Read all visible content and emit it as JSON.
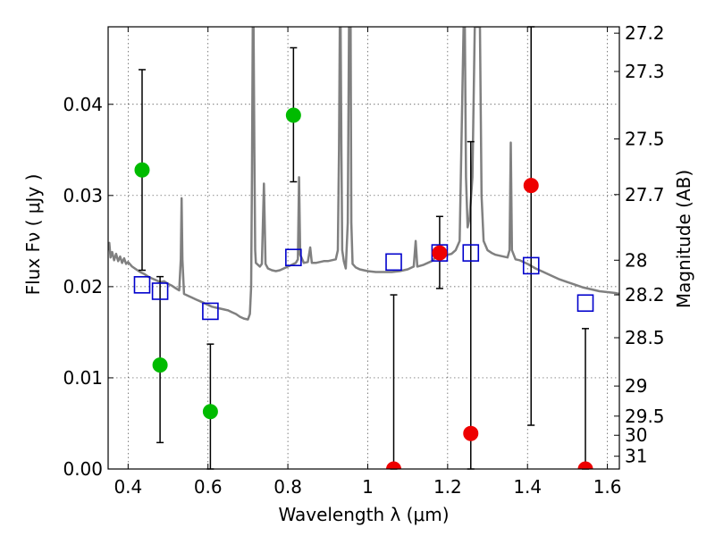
{
  "chart_data": {
    "type": "scatter",
    "xlabel": "Wavelength  λ (μm)",
    "ylabel": "Flux  Fν  ( μJy )",
    "ylabel_right": "Magnitude (AB)",
    "xlim": [
      0.35,
      1.63
    ],
    "ylim": [
      0.0,
      0.0485
    ],
    "xticks": [
      {
        "value": 0.4,
        "label": "0.4"
      },
      {
        "value": 0.6,
        "label": "0.6"
      },
      {
        "value": 0.8,
        "label": "0.8"
      },
      {
        "value": 1.0,
        "label": "1"
      },
      {
        "value": 1.2,
        "label": "1.2"
      },
      {
        "value": 1.4,
        "label": "1.4"
      },
      {
        "value": 1.6,
        "label": "1.6"
      }
    ],
    "yticks": [
      {
        "value": 0.0,
        "label": "0.00"
      },
      {
        "value": 0.01,
        "label": "0.01"
      },
      {
        "value": 0.02,
        "label": "0.02"
      },
      {
        "value": 0.03,
        "label": "0.03"
      },
      {
        "value": 0.04,
        "label": "0.04"
      }
    ],
    "magnitude_ticks": [
      {
        "flux": 0.0478,
        "label": "27.2"
      },
      {
        "flux": 0.0436,
        "label": "27.3"
      },
      {
        "flux": 0.0362,
        "label": "27.5"
      },
      {
        "flux": 0.0301,
        "label": "27.7"
      },
      {
        "flux": 0.0229,
        "label": "28"
      },
      {
        "flux": 0.0191,
        "label": "28.2"
      },
      {
        "flux": 0.0144,
        "label": "28.5"
      },
      {
        "flux": 0.0091,
        "label": "29"
      },
      {
        "flux": 0.0058,
        "label": "29.5"
      },
      {
        "flux": 0.0037,
        "label": "30"
      },
      {
        "flux": 0.0014,
        "label": "31"
      }
    ],
    "grid": true,
    "colors": {
      "detection": "#00bb00",
      "non_detection": "#ee0000",
      "model": "#0000cc",
      "spectrum": "#808080",
      "errorbar": "#000000"
    },
    "series": [
      {
        "marker": "circle",
        "color": "#00bb00",
        "points": [
          {
            "x": 0.435,
            "y": 0.0328,
            "ylow": 0.0218,
            "yhigh": 0.0438
          },
          {
            "x": 0.48,
            "y": 0.0114,
            "ylow": 0.0029,
            "yhigh": 0.0211
          },
          {
            "x": 0.606,
            "y": 0.0063,
            "ylow": 0.0,
            "yhigh": 0.0137
          },
          {
            "x": 0.814,
            "y": 0.0388,
            "ylow": 0.0315,
            "yhigh": 0.0462
          }
        ]
      },
      {
        "marker": "circle",
        "color": "#ee0000",
        "points": [
          {
            "x": 1.065,
            "y": 0.0,
            "ylow": 0.0,
            "yhigh": 0.0191
          },
          {
            "x": 1.18,
            "y": 0.0237,
            "ylow": 0.0198,
            "yhigh": 0.0277
          },
          {
            "x": 1.258,
            "y": 0.0039,
            "ylow": 0.0,
            "yhigh": 0.0359
          },
          {
            "x": 1.409,
            "y": 0.0311,
            "ylow": 0.0048,
            "yhigh": 0.0485
          },
          {
            "x": 1.545,
            "y": 0.0,
            "ylow": 0.0,
            "yhigh": 0.0154
          }
        ]
      },
      {
        "marker": "square",
        "color": "#0000cc",
        "points": [
          {
            "x": 0.435,
            "y": 0.0202
          },
          {
            "x": 0.48,
            "y": 0.0195
          },
          {
            "x": 0.606,
            "y": 0.0173
          },
          {
            "x": 0.814,
            "y": 0.0232
          },
          {
            "x": 1.065,
            "y": 0.0227
          },
          {
            "x": 1.18,
            "y": 0.0237
          },
          {
            "x": 1.258,
            "y": 0.0237
          },
          {
            "x": 1.409,
            "y": 0.0223
          },
          {
            "x": 1.545,
            "y": 0.0182
          }
        ]
      },
      {
        "marker": "line",
        "color": "#808080",
        "points": [
          [
            0.35,
            0.024
          ],
          [
            0.353,
            0.0248
          ],
          [
            0.356,
            0.0232
          ],
          [
            0.36,
            0.0238
          ],
          [
            0.365,
            0.0229
          ],
          [
            0.37,
            0.0236
          ],
          [
            0.375,
            0.0228
          ],
          [
            0.38,
            0.0233
          ],
          [
            0.385,
            0.0226
          ],
          [
            0.39,
            0.0231
          ],
          [
            0.395,
            0.0225
          ],
          [
            0.4,
            0.0227
          ],
          [
            0.41,
            0.0222
          ],
          [
            0.42,
            0.0219
          ],
          [
            0.43,
            0.0216
          ],
          [
            0.44,
            0.0214
          ],
          [
            0.45,
            0.0211
          ],
          [
            0.46,
            0.0209
          ],
          [
            0.47,
            0.0207
          ],
          [
            0.48,
            0.0205
          ],
          [
            0.49,
            0.0206
          ],
          [
            0.5,
            0.0203
          ],
          [
            0.51,
            0.0201
          ],
          [
            0.52,
            0.0198
          ],
          [
            0.528,
            0.0196
          ],
          [
            0.532,
            0.023
          ],
          [
            0.534,
            0.0297
          ],
          [
            0.536,
            0.023
          ],
          [
            0.54,
            0.0192
          ],
          [
            0.55,
            0.019
          ],
          [
            0.56,
            0.0188
          ],
          [
            0.57,
            0.0186
          ],
          [
            0.58,
            0.0184
          ],
          [
            0.59,
            0.0182
          ],
          [
            0.6,
            0.018
          ],
          [
            0.61,
            0.0178
          ],
          [
            0.62,
            0.0177
          ],
          [
            0.63,
            0.0176
          ],
          [
            0.64,
            0.0175
          ],
          [
            0.65,
            0.0174
          ],
          [
            0.66,
            0.0172
          ],
          [
            0.67,
            0.017
          ],
          [
            0.68,
            0.0167
          ],
          [
            0.69,
            0.0165
          ],
          [
            0.7,
            0.0164
          ],
          [
            0.705,
            0.017
          ],
          [
            0.708,
            0.02
          ],
          [
            0.71,
            0.032
          ],
          [
            0.712,
            0.0485
          ],
          [
            0.714,
            0.0485
          ],
          [
            0.716,
            0.035
          ],
          [
            0.718,
            0.024
          ],
          [
            0.72,
            0.0226
          ],
          [
            0.73,
            0.0222
          ],
          [
            0.735,
            0.0225
          ],
          [
            0.74,
            0.0313
          ],
          [
            0.744,
            0.0225
          ],
          [
            0.75,
            0.022
          ],
          [
            0.76,
            0.0218
          ],
          [
            0.77,
            0.0217
          ],
          [
            0.78,
            0.0218
          ],
          [
            0.79,
            0.022
          ],
          [
            0.8,
            0.0222
          ],
          [
            0.81,
            0.0224
          ],
          [
            0.82,
            0.0226
          ],
          [
            0.825,
            0.023
          ],
          [
            0.828,
            0.032
          ],
          [
            0.831,
            0.0235
          ],
          [
            0.84,
            0.0226
          ],
          [
            0.85,
            0.0227
          ],
          [
            0.856,
            0.0243
          ],
          [
            0.86,
            0.0226
          ],
          [
            0.87,
            0.0226
          ],
          [
            0.88,
            0.0227
          ],
          [
            0.89,
            0.0228
          ],
          [
            0.9,
            0.0228
          ],
          [
            0.91,
            0.0229
          ],
          [
            0.92,
            0.023
          ],
          [
            0.925,
            0.024
          ],
          [
            0.928,
            0.035
          ],
          [
            0.93,
            0.0485
          ],
          [
            0.932,
            0.0485
          ],
          [
            0.934,
            0.035
          ],
          [
            0.936,
            0.024
          ],
          [
            0.94,
            0.0228
          ],
          [
            0.945,
            0.022
          ],
          [
            0.95,
            0.027
          ],
          [
            0.953,
            0.0485
          ],
          [
            0.955,
            0.0485
          ],
          [
            0.957,
            0.0485
          ],
          [
            0.959,
            0.027
          ],
          [
            0.962,
            0.0225
          ],
          [
            0.97,
            0.0221
          ],
          [
            0.98,
            0.0219
          ],
          [
            0.99,
            0.0218
          ],
          [
            1.0,
            0.0217
          ],
          [
            1.02,
            0.0216
          ],
          [
            1.04,
            0.0216
          ],
          [
            1.06,
            0.0216
          ],
          [
            1.08,
            0.0217
          ],
          [
            1.1,
            0.0219
          ],
          [
            1.115,
            0.0222
          ],
          [
            1.12,
            0.025
          ],
          [
            1.124,
            0.0222
          ],
          [
            1.14,
            0.0224
          ],
          [
            1.16,
            0.0228
          ],
          [
            1.17,
            0.0232
          ],
          [
            1.18,
            0.0236
          ],
          [
            1.19,
            0.0236
          ],
          [
            1.2,
            0.0235
          ],
          [
            1.21,
            0.0236
          ],
          [
            1.22,
            0.024
          ],
          [
            1.23,
            0.025
          ],
          [
            1.24,
            0.0485
          ],
          [
            1.243,
            0.0485
          ],
          [
            1.246,
            0.032
          ],
          [
            1.25,
            0.0265
          ],
          [
            1.255,
            0.0275
          ],
          [
            1.262,
            0.032
          ],
          [
            1.268,
            0.0485
          ],
          [
            1.275,
            0.0485
          ],
          [
            1.281,
            0.0485
          ],
          [
            1.285,
            0.03
          ],
          [
            1.29,
            0.025
          ],
          [
            1.3,
            0.024
          ],
          [
            1.31,
            0.0237
          ],
          [
            1.32,
            0.0235
          ],
          [
            1.33,
            0.0234
          ],
          [
            1.34,
            0.0233
          ],
          [
            1.35,
            0.0232
          ],
          [
            1.355,
            0.024
          ],
          [
            1.358,
            0.0358
          ],
          [
            1.361,
            0.024
          ],
          [
            1.37,
            0.023
          ],
          [
            1.38,
            0.0229
          ],
          [
            1.4,
            0.0225
          ],
          [
            1.42,
            0.022
          ],
          [
            1.44,
            0.0216
          ],
          [
            1.46,
            0.0212
          ],
          [
            1.48,
            0.0208
          ],
          [
            1.5,
            0.0205
          ],
          [
            1.52,
            0.0202
          ],
          [
            1.54,
            0.0199
          ],
          [
            1.56,
            0.0197
          ],
          [
            1.58,
            0.0195
          ],
          [
            1.6,
            0.0194
          ],
          [
            1.62,
            0.0193
          ],
          [
            1.63,
            0.0192
          ]
        ]
      }
    ]
  }
}
